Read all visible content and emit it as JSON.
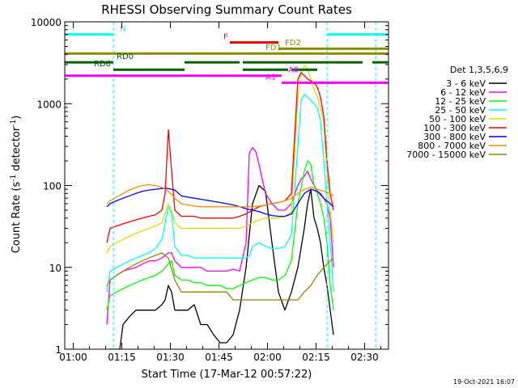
{
  "chart_data": {
    "type": "line",
    "title": "RHESSI Observing Summary Count Rates",
    "xlabel": "Start Time (17-Mar-12 00:57:22)",
    "ylabel_main": "Count Rate (s",
    "ylabel_sup1": "-1",
    "ylabel_mid": " detector",
    "ylabel_sup2": "-1",
    "ylabel_end": ")",
    "x_unit": "minutes since 00:57:22",
    "xlim": [
      0,
      100
    ],
    "ylim": [
      1,
      10000
    ],
    "yscale": "log",
    "grid": false,
    "legend_placement": "right, outside plot",
    "legend_title": "Det 1,3,5,6,9",
    "footer_date": "19-Oct-2021 16:07",
    "x_ticks": [
      {
        "x": 2.63,
        "label": "01:00"
      },
      {
        "x": 17.63,
        "label": "01:15"
      },
      {
        "x": 32.63,
        "label": "01:30"
      },
      {
        "x": 47.63,
        "label": "01:45"
      },
      {
        "x": 62.63,
        "label": "02:00"
      },
      {
        "x": 77.63,
        "label": "02:15"
      },
      {
        "x": 92.63,
        "label": "02:30"
      }
    ],
    "y_ticks": [
      {
        "y": 1,
        "label": "1"
      },
      {
        "y": 10,
        "label": "10"
      },
      {
        "y": 100,
        "label": "100"
      },
      {
        "y": 1000,
        "label": "1000"
      },
      {
        "y": 10000,
        "label": "10000"
      }
    ],
    "series": [
      {
        "name": "3 - 6 keV",
        "color": "#000000",
        "x": [
          14,
          16,
          17,
          18,
          20,
          22,
          24,
          26,
          28,
          30,
          31,
          32,
          33,
          34,
          36,
          38,
          40,
          42,
          44,
          46,
          48,
          50,
          52,
          54,
          56,
          58,
          60,
          62,
          64,
          66,
          68,
          70,
          72,
          74,
          75,
          76,
          77,
          78,
          79,
          80,
          81,
          82,
          83
        ],
        "values": [
          1,
          1,
          1,
          2,
          2.5,
          3,
          3,
          3,
          3,
          3.5,
          4,
          6,
          5,
          3,
          3,
          3,
          3.5,
          2,
          2,
          1.5,
          1.2,
          1.2,
          1.5,
          3,
          10,
          60,
          100,
          85,
          20,
          5,
          3,
          5,
          10,
          30,
          60,
          90,
          40,
          30,
          20,
          10,
          6,
          3,
          1.5
        ]
      },
      {
        "name": "6 - 12 keV",
        "color": "#ff00ff",
        "x": [
          13,
          14,
          16,
          18,
          20,
          22,
          24,
          26,
          28,
          30,
          32,
          33,
          34,
          36,
          38,
          40,
          42,
          44,
          46,
          48,
          50,
          52,
          54,
          56,
          57,
          58,
          59,
          60,
          62,
          64,
          66,
          68,
          70,
          72,
          73,
          74,
          75,
          76,
          77,
          78,
          79,
          80,
          81,
          82,
          83
        ],
        "values": [
          2,
          7,
          8,
          9,
          9.5,
          10,
          11,
          12,
          12,
          13,
          15,
          15,
          12,
          10,
          10,
          10,
          10,
          9,
          9,
          9,
          9,
          9.5,
          9,
          20,
          250,
          290,
          260,
          180,
          80,
          60,
          50,
          50,
          60,
          100,
          120,
          130,
          150,
          120,
          100,
          85,
          80,
          70,
          60,
          40,
          10
        ]
      },
      {
        "name": "12 - 25 keV",
        "color": "#00ff00",
        "x": [
          13,
          14,
          16,
          18,
          20,
          22,
          24,
          26,
          28,
          30,
          32,
          33,
          34,
          36,
          38,
          40,
          42,
          44,
          46,
          48,
          50,
          52,
          54,
          56,
          58,
          60,
          62,
          64,
          66,
          68,
          70,
          72,
          74,
          75,
          76,
          77,
          78,
          79,
          80,
          81,
          82,
          83
        ],
        "values": [
          3,
          4.5,
          5,
          5.5,
          6,
          6.5,
          7,
          7.5,
          8,
          9,
          11,
          12,
          8,
          7,
          7,
          6.5,
          6.5,
          6,
          6,
          6,
          5.5,
          5.5,
          6,
          6.5,
          7,
          7.5,
          7.5,
          7,
          7,
          8,
          12,
          60,
          150,
          200,
          180,
          100,
          80,
          60,
          40,
          20,
          6,
          3
        ]
      },
      {
        "name": "25 - 50 keV",
        "color": "#00ffff",
        "x": [
          13,
          14,
          16,
          18,
          20,
          22,
          24,
          26,
          28,
          30,
          31,
          32,
          33,
          34,
          36,
          38,
          40,
          42,
          44,
          46,
          48,
          50,
          52,
          54,
          56,
          57,
          58,
          60,
          62,
          64,
          66,
          68,
          70,
          72,
          73,
          74,
          75,
          76,
          77,
          78,
          79,
          80,
          81,
          82,
          83
        ],
        "values": [
          5,
          9,
          10,
          11,
          12,
          13,
          14,
          15,
          17,
          22,
          35,
          55,
          45,
          18,
          14,
          14,
          13,
          13,
          13,
          13,
          13,
          13,
          13,
          13,
          13,
          14,
          18,
          20,
          18,
          17,
          17,
          18,
          25,
          300,
          1100,
          1300,
          1200,
          1100,
          1000,
          900,
          600,
          200,
          60,
          20,
          5
        ]
      },
      {
        "name": "50 - 100 keV",
        "color": "#dddd00",
        "x": [
          13,
          14,
          16,
          18,
          20,
          22,
          24,
          26,
          28,
          30,
          31,
          32,
          33,
          34,
          36,
          38,
          40,
          42,
          44,
          46,
          48,
          50,
          52,
          54,
          56,
          58,
          60,
          62,
          64,
          66,
          68,
          70,
          72,
          73,
          74,
          75,
          76,
          77,
          78,
          79,
          80,
          81,
          82,
          83
        ],
        "values": [
          15,
          18,
          20,
          22,
          24,
          26,
          28,
          30,
          32,
          35,
          45,
          60,
          50,
          35,
          30,
          30,
          30,
          30,
          30,
          30,
          30,
          30,
          30,
          30,
          32,
          35,
          38,
          40,
          40,
          40,
          42,
          48,
          1200,
          2500,
          2900,
          2700,
          2000,
          1500,
          1200,
          900,
          600,
          150,
          50,
          20
        ]
      },
      {
        "name": "100 - 300 keV",
        "color": "#ff0000",
        "x": [
          13,
          14,
          16,
          18,
          20,
          22,
          24,
          26,
          28,
          30,
          31,
          32,
          33,
          34,
          36,
          38,
          40,
          42,
          44,
          46,
          48,
          50,
          52,
          54,
          56,
          58,
          60,
          62,
          64,
          66,
          68,
          70,
          72,
          73,
          74,
          75,
          76,
          77,
          78,
          79,
          80,
          81,
          82,
          83
        ],
        "values": [
          20,
          30,
          32,
          34,
          36,
          38,
          40,
          42,
          44,
          50,
          80,
          480,
          150,
          50,
          42,
          42,
          42,
          40,
          40,
          40,
          40,
          40,
          40,
          42,
          45,
          50,
          55,
          58,
          60,
          62,
          65,
          80,
          2000,
          2400,
          2200,
          2000,
          1900,
          1800,
          1600,
          1200,
          700,
          200,
          80,
          50
        ]
      },
      {
        "name": "300 - 800 keV",
        "color": "#0000ff",
        "x": [
          13,
          14,
          16,
          18,
          20,
          22,
          24,
          26,
          28,
          30,
          32,
          34,
          36,
          38,
          40,
          42,
          44,
          46,
          48,
          50,
          52,
          54,
          56,
          58,
          60,
          62,
          64,
          66,
          68,
          70,
          72,
          74,
          76,
          78,
          80,
          82,
          83
        ],
        "values": [
          55,
          60,
          65,
          70,
          75,
          80,
          85,
          88,
          90,
          92,
          92,
          88,
          75,
          72,
          70,
          68,
          66,
          64,
          62,
          60,
          58,
          55,
          52,
          50,
          48,
          45,
          43,
          42,
          42,
          45,
          60,
          80,
          90,
          85,
          70,
          60,
          55
        ]
      },
      {
        "name": "800 - 7000 keV",
        "color": "#ff8c00",
        "x": [
          13,
          14,
          16,
          18,
          20,
          22,
          24,
          26,
          28,
          30,
          32,
          34,
          36,
          38,
          40,
          42,
          44,
          46,
          48,
          50,
          52,
          54,
          56,
          58,
          60,
          62,
          64,
          66,
          68,
          70,
          72,
          74,
          76,
          78,
          80,
          82,
          83
        ],
        "values": [
          60,
          65,
          72,
          80,
          88,
          95,
          100,
          102,
          100,
          95,
          85,
          70,
          60,
          58,
          56,
          55,
          55,
          55,
          55,
          55,
          55,
          55,
          55,
          55,
          56,
          58,
          60,
          62,
          65,
          70,
          80,
          90,
          95,
          90,
          85,
          80,
          75
        ]
      },
      {
        "name": "7000 - 15000 keV",
        "color": "#8b8b00",
        "x": [
          13,
          14,
          16,
          18,
          20,
          22,
          24,
          26,
          28,
          30,
          32,
          34,
          36,
          38,
          40,
          42,
          44,
          46,
          48,
          50,
          52,
          54,
          56,
          58,
          60,
          62,
          64,
          66,
          68,
          70,
          72,
          74,
          76,
          78,
          80,
          82,
          83
        ],
        "values": [
          6,
          7,
          8,
          9,
          10,
          11,
          12,
          13,
          14,
          15,
          13,
          7,
          5,
          5,
          5,
          5,
          5,
          5,
          5,
          5,
          4,
          4,
          4,
          4,
          4,
          4,
          4,
          4,
          4,
          4,
          4,
          5,
          6,
          8,
          10,
          12,
          13
        ]
      }
    ],
    "state_bars": [
      {
        "label": "N",
        "color": "#00ffff",
        "y": 7000,
        "segments": [
          [
            0,
            15
          ],
          [
            81,
            100
          ]
        ],
        "label_x": 17
      },
      {
        "label": "F",
        "color": "#ff0000",
        "y": 5600,
        "segments": [
          [
            51,
            66
          ]
        ],
        "label_x": 49
      },
      {
        "label": "FD1",
        "color": "#8b8b00",
        "y": 4100,
        "segments": [
          [
            0,
            100
          ]
        ],
        "label_x": 62
      },
      {
        "label": "FD2",
        "color": "#8b8b00",
        "y": 4700,
        "segments": [
          [
            66,
            100
          ]
        ],
        "label_x": 68
      },
      {
        "label": "RD0",
        "color": "#006400",
        "y": 3200,
        "segments": [
          [
            0,
            15
          ],
          [
            37,
            54
          ],
          [
            55,
            92
          ],
          [
            95,
            100
          ]
        ],
        "label_x": 16
      },
      {
        "label": "RD6",
        "color": "#006400",
        "y": 2600,
        "segments": [
          [
            15,
            37
          ],
          [
            55,
            69
          ],
          [
            70,
            78
          ]
        ],
        "label_x": 9
      },
      {
        "label": "A0",
        "color": "#ff00ff",
        "y": 2200,
        "segments": [
          [
            0,
            67
          ]
        ],
        "label_x": 69
      },
      {
        "label": "A1",
        "color": "#ff00ff",
        "y": 1800,
        "segments": [
          [
            67,
            100
          ]
        ],
        "label_x": 62
      }
    ],
    "night_markers": [
      0,
      15,
      81,
      96
    ]
  }
}
